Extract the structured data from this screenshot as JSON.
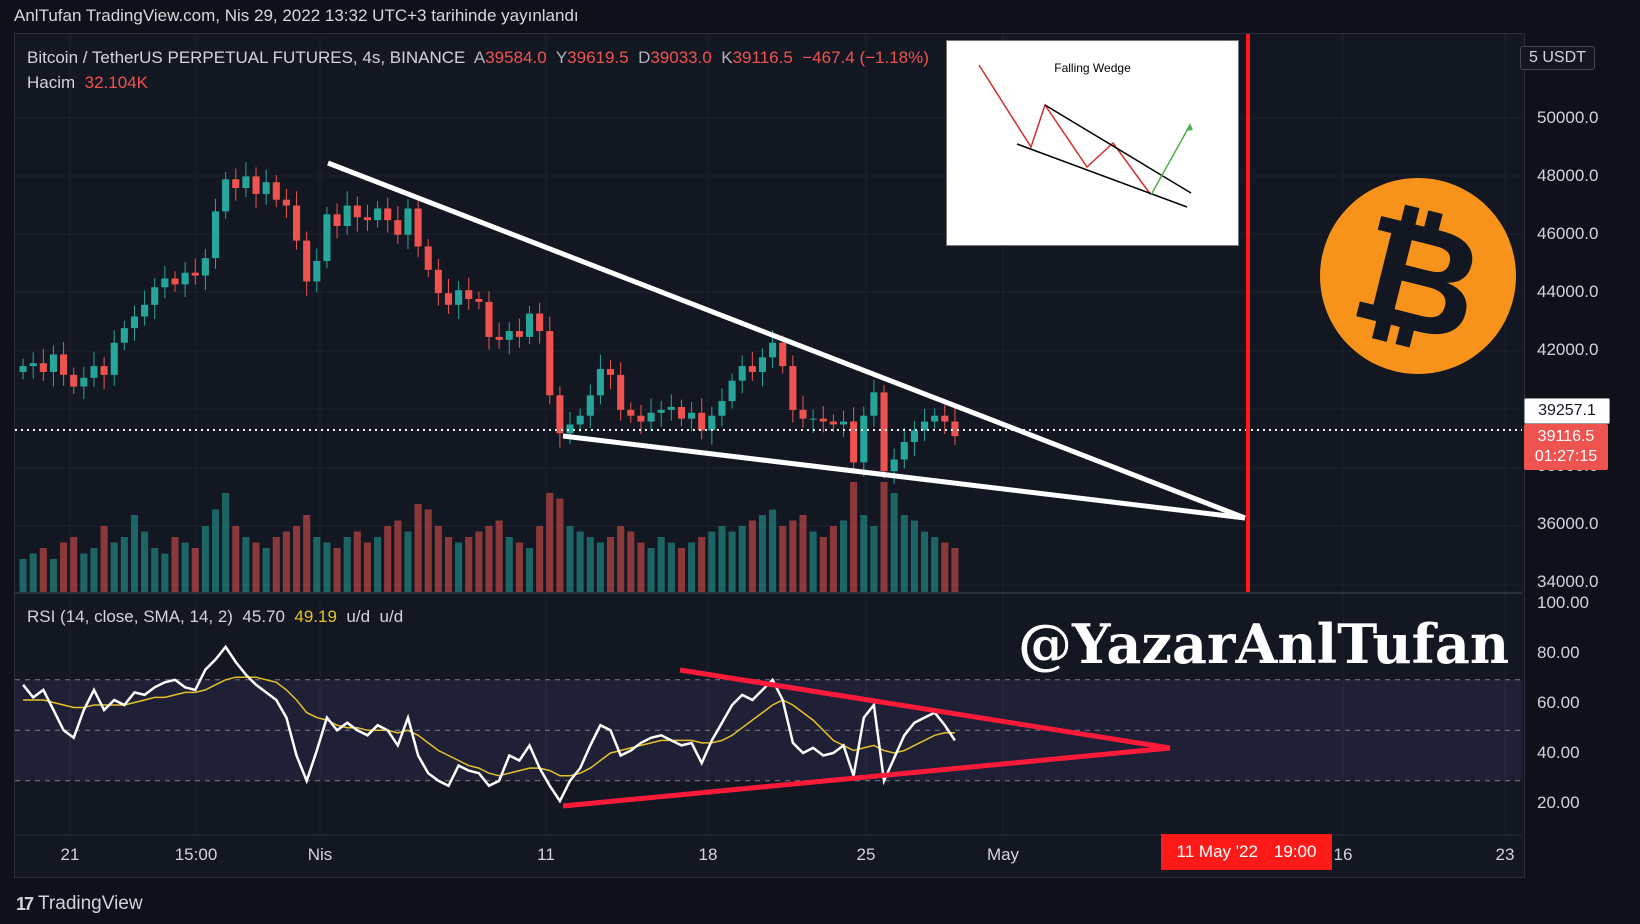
{
  "header": {
    "publish_line": "AnlTufan TradingView.com, Nis 29, 2022 13:32 UTC+3 tarihinde yayınlandı"
  },
  "legend": {
    "symbol": "Bitcoin / TetherUS PERPETUAL FUTURES, 4s, BINANCE",
    "open_label": "A",
    "open": "39584.0",
    "high_label": "Y",
    "high": "39619.5",
    "low_label": "D",
    "low": "39033.0",
    "close_label": "K",
    "close": "39116.5",
    "change": "−467.4 (−1.18%)",
    "volume_label": "Hacim",
    "volume": "32.104K"
  },
  "rsi_legend": {
    "title": "RSI (14, close, SMA, 14, 2)",
    "rsi": "45.70",
    "sma": "49.19",
    "extra1": "u/d",
    "extra2": "u/d"
  },
  "price_axis": {
    "unit": "USDT",
    "unit_prefix": "5",
    "labels": [
      "50000.0",
      "48000.0",
      "46000.0",
      "44000.0",
      "42000.0",
      "38000.0",
      "36000.0",
      "34000.0"
    ],
    "marker_price": "39257.1",
    "last_price": "39116.5",
    "countdown": "01:27:15"
  },
  "rsi_axis": {
    "labels": [
      "100.00",
      "80.00",
      "60.00",
      "40.00",
      "20.00"
    ]
  },
  "time_axis": {
    "labels": [
      "21",
      "15:00",
      "Nis",
      "11",
      "18",
      "25",
      "May",
      "16",
      "23"
    ],
    "highlight_date": "11 May '22",
    "highlight_time": "19:00"
  },
  "inset": {
    "title": "Falling Wedge"
  },
  "watermark": "@YazarAnlTufan",
  "brand": "TradingView",
  "colors": {
    "bg": "#131722",
    "up": "#26a69a",
    "down": "#ef5350",
    "rsi_band": "#7e57c2",
    "sma": "#e6c229",
    "accent": "#ff1a1a",
    "btc": "#f7931a"
  },
  "chart_data": [
    {
      "type": "candlestick",
      "ylim": [
        34000,
        51500
      ],
      "close_path": [
        41500,
        41600,
        41300,
        41900,
        41200,
        40800,
        41100,
        41500,
        41200,
        42300,
        42800,
        43200,
        43600,
        44200,
        44500,
        44300,
        44700,
        44600,
        45200,
        46800,
        47900,
        47600,
        48000,
        47400,
        47800,
        47200,
        47000,
        45800,
        44400,
        45100,
        46700,
        46300,
        47000,
        46600,
        46500,
        46900,
        46500,
        46000,
        46900,
        45600,
        44800,
        44000,
        43600,
        44100,
        43800,
        43700,
        42500,
        42400,
        42700,
        42500,
        43300,
        42700,
        40500,
        39200,
        39500,
        39800,
        40500,
        41400,
        41200,
        40000,
        39800,
        39600,
        39900,
        40000,
        40100,
        39700,
        39900,
        39300,
        39800,
        40300,
        41000,
        41500,
        41300,
        41800,
        42300,
        41500,
        40000,
        39700,
        39700,
        39600,
        39500,
        39600,
        38200,
        39800,
        40600,
        37900,
        38300,
        38900,
        39300,
        39600,
        39800,
        39600,
        39100
      ],
      "volume_scale": [
        0.3,
        0.35,
        0.4,
        0.3,
        0.45,
        0.5,
        0.35,
        0.4,
        0.6,
        0.45,
        0.5,
        0.7,
        0.55,
        0.4,
        0.35,
        0.5,
        0.45,
        0.4,
        0.6,
        0.75,
        0.9,
        0.6,
        0.5,
        0.45,
        0.4,
        0.5,
        0.55,
        0.6,
        0.7,
        0.5,
        0.45,
        0.4,
        0.5,
        0.55,
        0.45,
        0.5,
        0.6,
        0.65,
        0.55,
        0.8,
        0.75,
        0.6,
        0.5,
        0.45,
        0.5,
        0.55,
        0.6,
        0.65,
        0.5,
        0.45,
        0.4,
        0.6,
        0.9,
        0.85,
        0.6,
        0.55,
        0.5,
        0.45,
        0.5,
        0.6,
        0.55,
        0.45,
        0.4,
        0.5,
        0.45,
        0.4,
        0.45,
        0.5,
        0.55,
        0.6,
        0.55,
        0.6,
        0.65,
        0.7,
        0.75,
        0.6,
        0.65,
        0.7,
        0.55,
        0.5,
        0.6,
        0.65,
        1.0,
        0.7,
        0.6,
        1.0,
        0.9,
        0.7,
        0.65,
        0.55,
        0.5,
        0.45,
        0.4
      ]
    },
    {
      "type": "line",
      "series": [
        {
          "name": "RSI",
          "values": [
            68,
            63,
            66,
            58,
            50,
            47,
            58,
            66,
            58,
            62,
            60,
            65,
            64,
            67,
            69,
            70,
            67,
            66,
            74,
            78,
            83,
            77,
            72,
            68,
            65,
            62,
            55,
            40,
            30,
            42,
            55,
            50,
            53,
            50,
            48,
            52,
            50,
            44,
            55,
            40,
            33,
            30,
            28,
            36,
            34,
            33,
            28,
            30,
            40,
            38,
            44,
            35,
            28,
            22,
            30,
            35,
            44,
            52,
            50,
            40,
            42,
            45,
            47,
            48,
            46,
            44,
            45,
            37,
            46,
            53,
            60,
            64,
            62,
            66,
            70,
            62,
            45,
            41,
            43,
            40,
            41,
            44,
            32,
            55,
            60,
            30,
            39,
            48,
            53,
            55,
            57,
            52,
            46
          ]
        },
        {
          "values": [
            62,
            62,
            62,
            61,
            60,
            59,
            59,
            60,
            60,
            60,
            60,
            61,
            62,
            63,
            63,
            64,
            65,
            65,
            66,
            68,
            70,
            71,
            71,
            71,
            70,
            69,
            66,
            62,
            57,
            55,
            54,
            52,
            51,
            51,
            50,
            50,
            50,
            49,
            50,
            48,
            45,
            42,
            40,
            38,
            36,
            35,
            33,
            32,
            33,
            34,
            35,
            35,
            34,
            32,
            32,
            33,
            35,
            38,
            41,
            42,
            43,
            44,
            45,
            46,
            46,
            46,
            46,
            45,
            45,
            46,
            48,
            51,
            54,
            57,
            60,
            62,
            60,
            57,
            54,
            50,
            46,
            44,
            42,
            43,
            44,
            42,
            41,
            42,
            44,
            46,
            48,
            49,
            49
          ]
        }
      ],
      "ylim": [
        10,
        100
      ],
      "bands": [
        30,
        50,
        70
      ]
    }
  ]
}
